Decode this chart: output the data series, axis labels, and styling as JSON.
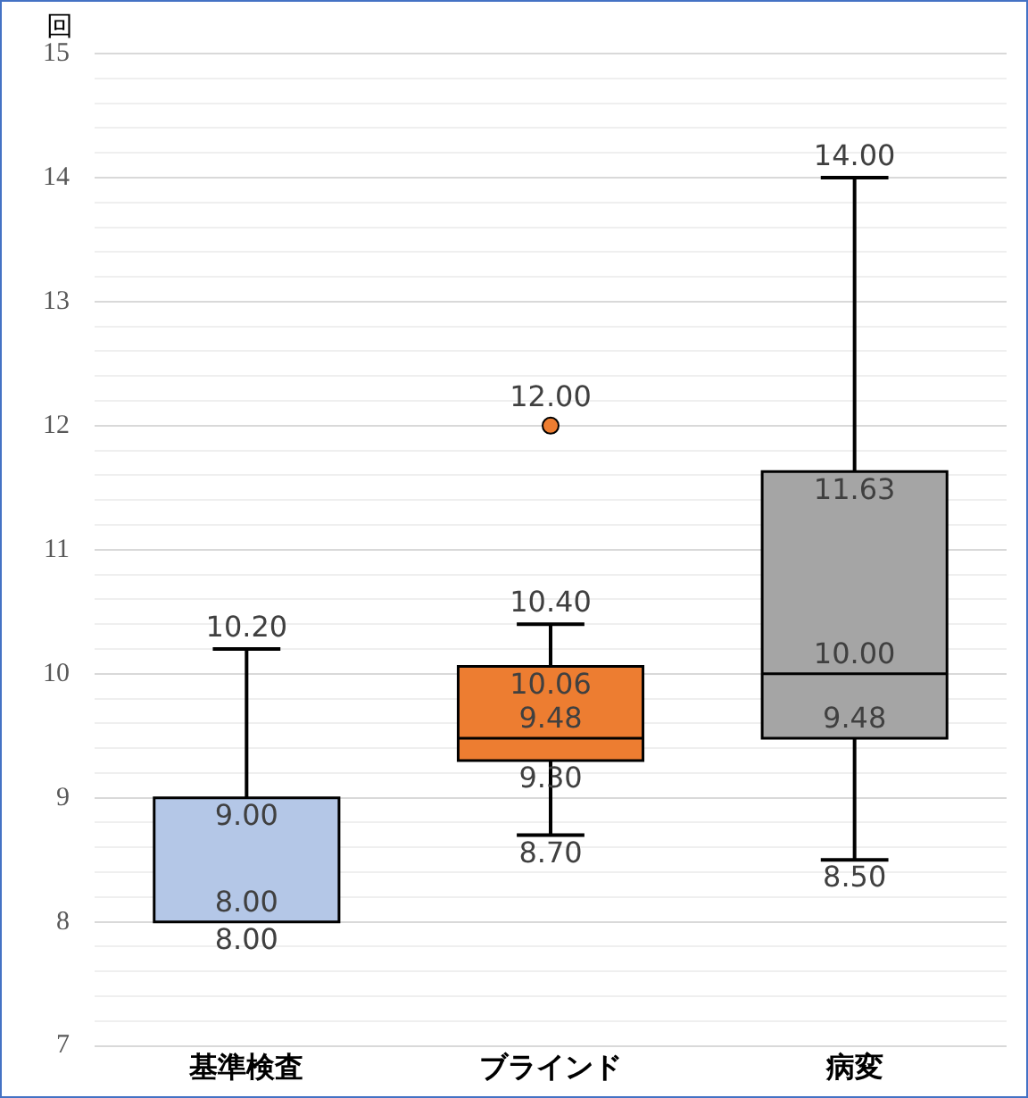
{
  "chart_data": {
    "type": "box",
    "ylabel": "回",
    "categories": [
      "基準検査",
      "ブラインド",
      "病変"
    ],
    "colors": [
      "#b4c7e7",
      "#ed7d31",
      "#a5a5a5"
    ],
    "boxes": [
      {
        "low": 8.0,
        "q1": 8.0,
        "median": 8.0,
        "q3": 9.0,
        "high": 10.2
      },
      {
        "low": 8.7,
        "q1": 9.3,
        "median": 9.48,
        "q3": 10.06,
        "high": 10.4,
        "outliers": [
          12.0
        ]
      },
      {
        "low": 8.5,
        "q1": 9.48,
        "median": 10.0,
        "q3": 11.63,
        "high": 14.0
      }
    ],
    "ylim": [
      7,
      15
    ],
    "yticks": [
      7,
      {
        "value": 7.2,
        "label": null
      },
      {
        "value": 7.4,
        "label": null
      },
      {
        "value": 7.6,
        "label": null
      },
      {
        "value": 7.8,
        "label": null
      },
      8,
      {
        "value": 8.2,
        "label": null
      },
      {
        "value": 8.4,
        "label": null
      },
      {
        "value": 8.6,
        "label": null
      },
      {
        "value": 8.8,
        "label": null
      },
      9,
      {
        "value": 9.2,
        "label": null
      },
      {
        "value": 9.4,
        "label": null
      },
      {
        "value": 9.6,
        "label": null
      },
      {
        "value": 9.8,
        "label": null
      },
      10,
      {
        "value": 10.2,
        "label": null
      },
      {
        "value": 10.4,
        "label": null
      },
      {
        "value": 10.6,
        "label": null
      },
      {
        "value": 10.8,
        "label": null
      },
      11,
      {
        "value": 11.2,
        "label": null
      },
      {
        "value": 11.4,
        "label": null
      },
      {
        "value": 11.6,
        "label": null
      },
      {
        "value": 11.8,
        "label": null
      },
      12,
      {
        "value": 12.2,
        "label": null
      },
      {
        "value": 12.4,
        "label": null
      },
      {
        "value": 12.6,
        "label": null
      },
      {
        "value": 12.8,
        "label": null
      },
      13,
      {
        "value": 13.2,
        "label": null
      },
      {
        "value": 13.4,
        "label": null
      },
      {
        "value": 13.6,
        "label": null
      },
      {
        "value": 13.8,
        "label": null
      },
      14,
      {
        "value": 14.2,
        "label": null
      },
      {
        "value": 14.4,
        "label": null
      },
      {
        "value": 14.6,
        "label": null
      },
      {
        "value": 14.8,
        "label": null
      },
      15
    ],
    "grid": "y",
    "annotations": [
      {
        "text": "10.20",
        "x": "基準検査",
        "y": 10.2
      },
      {
        "text": "9.00",
        "x": "基準検査",
        "y": 9.0
      },
      {
        "text": "8.00",
        "x": "基準検査",
        "y": 8.0
      },
      {
        "text": "8.00",
        "x": "基準検査",
        "y": 8.0
      },
      "12.00",
      {
        "text": "10.40",
        "x": "ブラインド",
        "y": 10.4
      },
      {
        "text": "10.06",
        "x": "ブラインド",
        "y": 10.06
      },
      {
        "text": "9.48",
        "x": "ブラインド",
        "y": 9.48
      },
      {
        "text": "9.30",
        "x": "ブラインド",
        "y": 9.3
      },
      {
        "text": "8.70",
        "x": "ブラインド",
        "y": 8.7
      },
      {
        "text": "14.00",
        "x": "病変",
        "y": 14.0
      },
      {
        "text": "11.63",
        "x": "病変",
        "y": 11.63
      },
      {
        "text": "10.00",
        "x": "病変",
        "y": 10.0
      },
      {
        "text": "9.48",
        "x": "病変",
        "y": 9.48
      },
      {
        "text": "8.50",
        "x": "病変",
        "y": 8.5
      }
    ]
  }
}
